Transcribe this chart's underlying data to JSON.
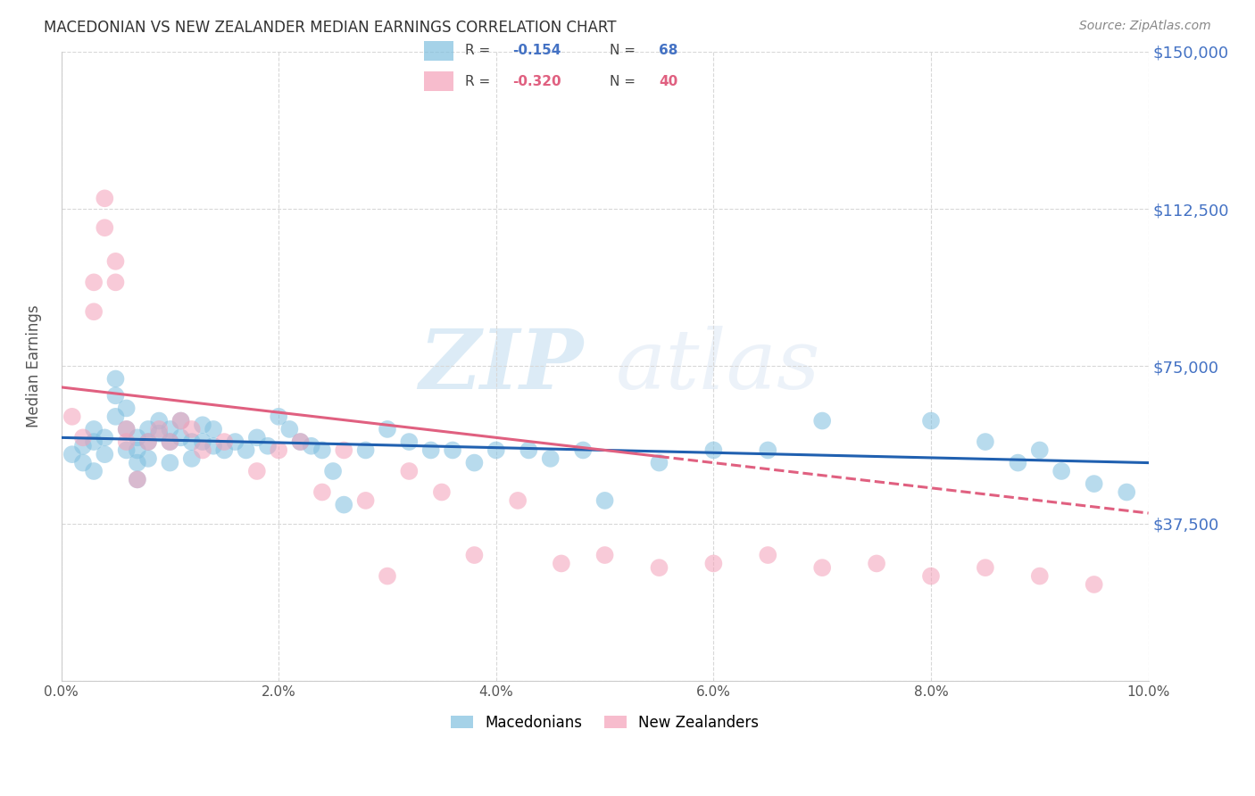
{
  "title": "MACEDONIAN VS NEW ZEALANDER MEDIAN EARNINGS CORRELATION CHART",
  "source": "Source: ZipAtlas.com",
  "ylabel": "Median Earnings",
  "yticks": [
    0,
    37500,
    75000,
    112500,
    150000
  ],
  "ytick_labels": [
    "",
    "$37,500",
    "$75,000",
    "$112,500",
    "$150,000"
  ],
  "ymin": 0,
  "ymax": 150000,
  "xmin": 0.0,
  "xmax": 0.1,
  "blue_color": "#7fbfdf",
  "pink_color": "#f4a0b8",
  "blue_line_color": "#2060b0",
  "pink_line_color": "#e06080",
  "watermark_zip": "ZIP",
  "watermark_atlas": "atlas",
  "background_color": "#ffffff",
  "grid_color": "#d8d8d8",
  "blue_slope": -60000,
  "blue_intercept": 58000,
  "pink_slope": -300000,
  "pink_intercept": 70000,
  "macedonian_x": [
    0.001,
    0.002,
    0.002,
    0.003,
    0.003,
    0.003,
    0.004,
    0.004,
    0.005,
    0.005,
    0.005,
    0.006,
    0.006,
    0.006,
    0.007,
    0.007,
    0.007,
    0.007,
    0.008,
    0.008,
    0.008,
    0.009,
    0.009,
    0.01,
    0.01,
    0.01,
    0.011,
    0.011,
    0.012,
    0.012,
    0.013,
    0.013,
    0.014,
    0.014,
    0.015,
    0.016,
    0.017,
    0.018,
    0.019,
    0.02,
    0.021,
    0.022,
    0.023,
    0.024,
    0.025,
    0.026,
    0.028,
    0.03,
    0.032,
    0.034,
    0.036,
    0.038,
    0.04,
    0.043,
    0.045,
    0.048,
    0.05,
    0.055,
    0.06,
    0.065,
    0.07,
    0.08,
    0.085,
    0.088,
    0.09,
    0.092,
    0.095,
    0.098
  ],
  "macedonian_y": [
    54000,
    56000,
    52000,
    60000,
    57000,
    50000,
    58000,
    54000,
    72000,
    68000,
    63000,
    65000,
    60000,
    55000,
    58000,
    55000,
    52000,
    48000,
    60000,
    57000,
    53000,
    62000,
    59000,
    60000,
    57000,
    52000,
    62000,
    58000,
    57000,
    53000,
    61000,
    57000,
    60000,
    56000,
    55000,
    57000,
    55000,
    58000,
    56000,
    63000,
    60000,
    57000,
    56000,
    55000,
    50000,
    42000,
    55000,
    60000,
    57000,
    55000,
    55000,
    52000,
    55000,
    55000,
    53000,
    55000,
    43000,
    52000,
    55000,
    55000,
    62000,
    62000,
    57000,
    52000,
    55000,
    50000,
    47000,
    45000
  ],
  "newzealander_x": [
    0.001,
    0.002,
    0.003,
    0.003,
    0.004,
    0.004,
    0.005,
    0.005,
    0.006,
    0.006,
    0.007,
    0.008,
    0.009,
    0.01,
    0.011,
    0.012,
    0.013,
    0.015,
    0.018,
    0.02,
    0.022,
    0.024,
    0.026,
    0.028,
    0.03,
    0.032,
    0.035,
    0.038,
    0.042,
    0.046,
    0.05,
    0.055,
    0.06,
    0.065,
    0.07,
    0.075,
    0.08,
    0.085,
    0.09,
    0.095
  ],
  "newzealander_y": [
    63000,
    58000,
    95000,
    88000,
    115000,
    108000,
    100000,
    95000,
    60000,
    57000,
    48000,
    57000,
    60000,
    57000,
    62000,
    60000,
    55000,
    57000,
    50000,
    55000,
    57000,
    45000,
    55000,
    43000,
    25000,
    50000,
    45000,
    30000,
    43000,
    28000,
    30000,
    27000,
    28000,
    30000,
    27000,
    28000,
    25000,
    27000,
    25000,
    23000
  ]
}
